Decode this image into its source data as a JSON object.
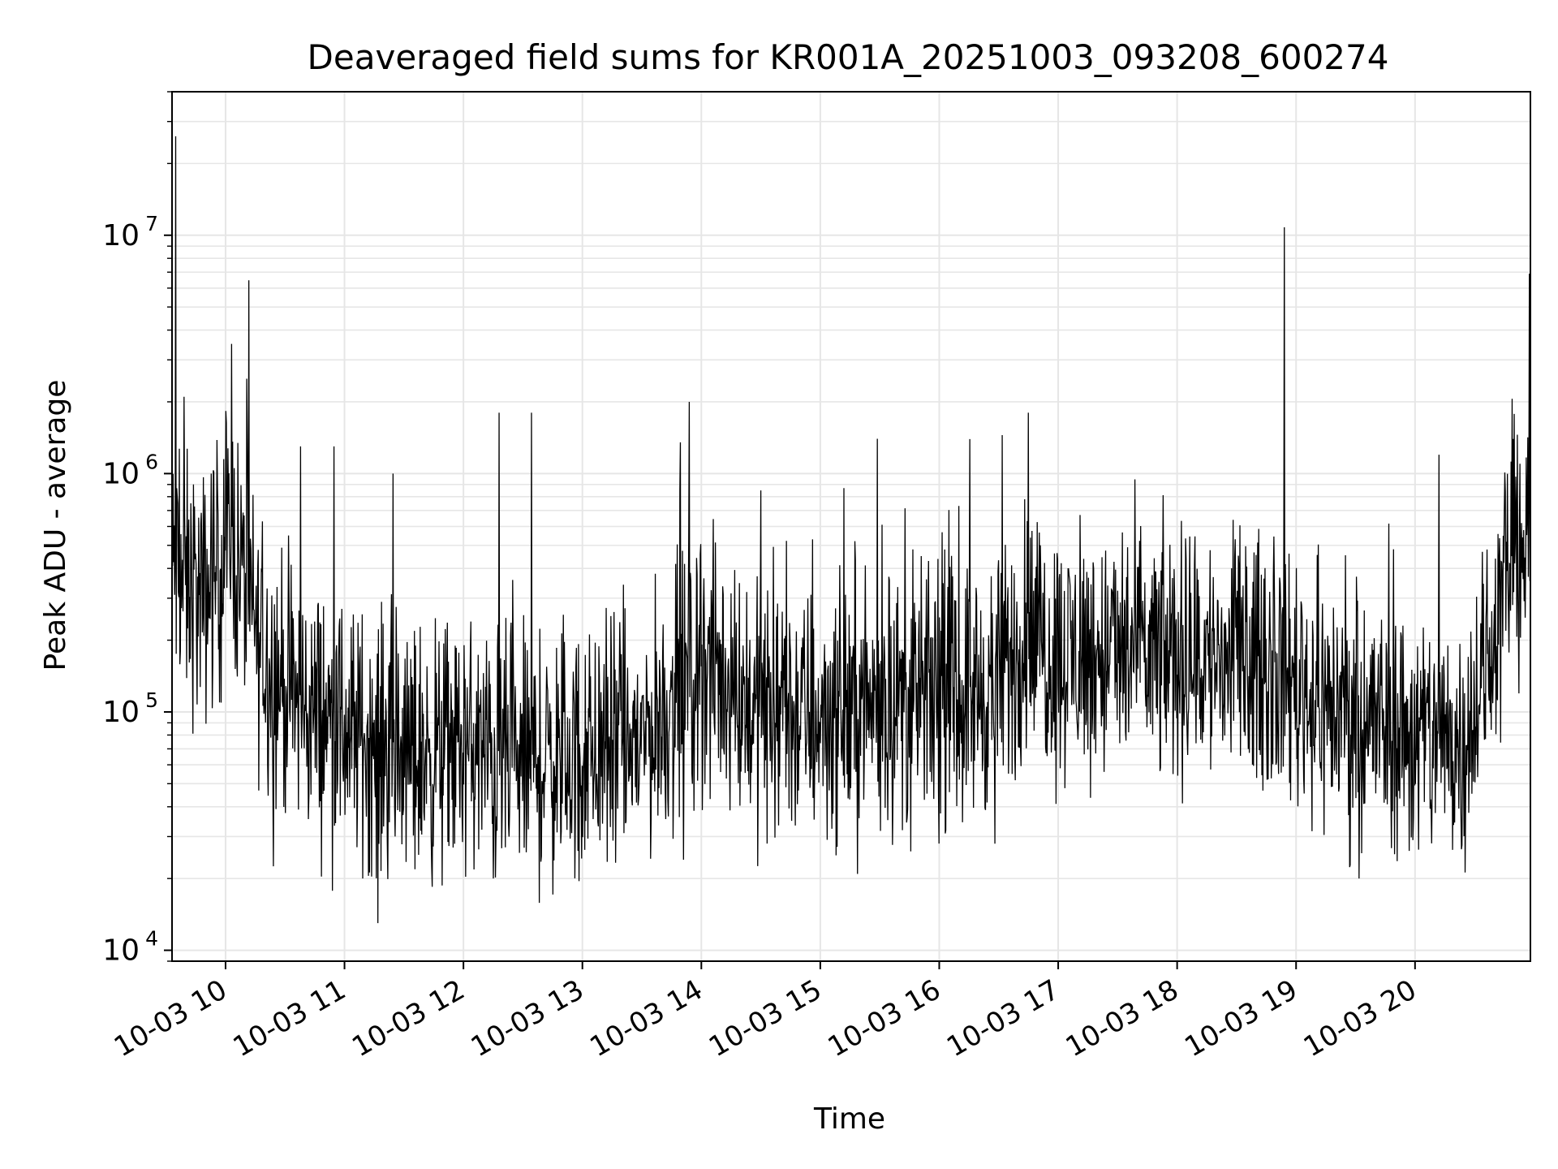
{
  "chart_data": {
    "type": "line",
    "title": "Deaveraged field sums for KR001A_20251003_093208_600274",
    "xlabel": "Time",
    "ylabel": "Peak ADU - average",
    "yscale": "log",
    "ylim": [
      9000,
      40000000
    ],
    "xlim_hours": [
      9.55,
      20.97
    ],
    "grid": true,
    "line_color": "#000000",
    "grid_color": "#e6e6e6",
    "x_ticks": [
      {
        "value": 10,
        "label": "10-03 10"
      },
      {
        "value": 11,
        "label": "10-03 11"
      },
      {
        "value": 12,
        "label": "10-03 12"
      },
      {
        "value": 13,
        "label": "10-03 13"
      },
      {
        "value": 14,
        "label": "10-03 14"
      },
      {
        "value": 15,
        "label": "10-03 15"
      },
      {
        "value": 16,
        "label": "10-03 16"
      },
      {
        "value": 17,
        "label": "10-03 17"
      },
      {
        "value": 18,
        "label": "10-03 18"
      },
      {
        "value": 19,
        "label": "10-03 19"
      },
      {
        "value": 20,
        "label": "10-03 20"
      }
    ],
    "y_ticks": [
      {
        "value": 10000,
        "base": "10",
        "exp": "4"
      },
      {
        "value": 100000,
        "base": "10",
        "exp": "5"
      },
      {
        "value": 1000000,
        "base": "10",
        "exp": "6"
      },
      {
        "value": 10000000,
        "base": "10",
        "exp": "7"
      }
    ],
    "baseline": {
      "hours": [
        9.55,
        9.8,
        10.05,
        10.3,
        10.6,
        11.0,
        11.5,
        12.0,
        12.5,
        13.0,
        13.5,
        14.0,
        14.5,
        15.0,
        15.5,
        16.0,
        16.5,
        16.75,
        17.0,
        17.5,
        18.0,
        18.5,
        18.9,
        19.2,
        19.5,
        20.0,
        20.4,
        20.6,
        20.8,
        20.97
      ],
      "values": [
        400000,
        280000,
        550000,
        180000,
        110000,
        85000,
        65000,
        70000,
        60000,
        65000,
        75000,
        160000,
        100000,
        95000,
        110000,
        115000,
        125000,
        210000,
        170000,
        175000,
        170000,
        160000,
        150000,
        110000,
        95000,
        80000,
        75000,
        150000,
        450000,
        520000
      ]
    },
    "spikes": [
      {
        "hour": 9.58,
        "value": 26000000
      },
      {
        "hour": 9.65,
        "value": 2100000
      },
      {
        "hour": 9.73,
        "value": 900000
      },
      {
        "hour": 9.88,
        "value": 1000000
      },
      {
        "hour": 10.05,
        "value": 3500000
      },
      {
        "hour": 10.18,
        "value": 2500000
      },
      {
        "hour": 10.63,
        "value": 1300000
      },
      {
        "hour": 10.91,
        "value": 1300000
      },
      {
        "hour": 11.41,
        "value": 1000000
      },
      {
        "hour": 12.3,
        "value": 1800000
      },
      {
        "hour": 12.57,
        "value": 1800000
      },
      {
        "hour": 13.9,
        "value": 2000000
      },
      {
        "hour": 13.82,
        "value": 850000
      },
      {
        "hour": 14.5,
        "value": 850000
      },
      {
        "hour": 15.48,
        "value": 1400000
      },
      {
        "hour": 15.52,
        "value": 610000
      },
      {
        "hour": 16.53,
        "value": 1450000
      },
      {
        "hour": 16.75,
        "value": 1800000
      },
      {
        "hour": 16.72,
        "value": 780000
      },
      {
        "hour": 16.85,
        "value": 500000
      },
      {
        "hour": 18.9,
        "value": 10800000
      },
      {
        "hour": 20.2,
        "value": 1200000
      },
      {
        "hour": 20.88,
        "value": 1100000
      },
      {
        "hour": 20.96,
        "value": 6900000
      }
    ],
    "dips": [
      {
        "hour": 11.28,
        "value": 13000
      },
      {
        "hour": 12.97,
        "value": 19500
      },
      {
        "hour": 13.85,
        "value": 24000
      },
      {
        "hour": 15.76,
        "value": 26000
      },
      {
        "hour": 16.47,
        "value": 28000
      },
      {
        "hour": 12.25,
        "value": 20000
      },
      {
        "hour": 10.4,
        "value": 22500
      },
      {
        "hour": 19.98,
        "value": 29000
      }
    ]
  }
}
